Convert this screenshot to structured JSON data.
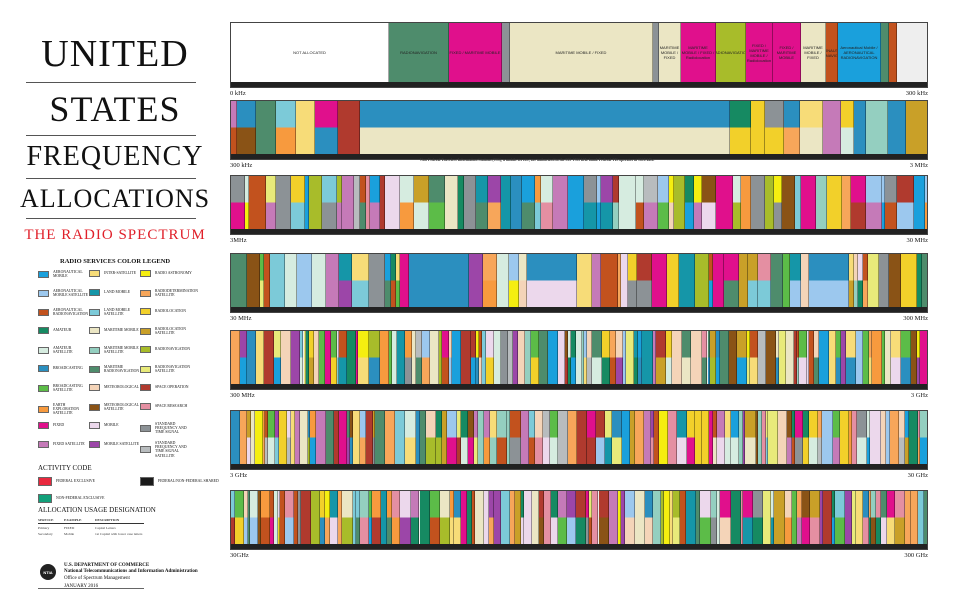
{
  "title": {
    "line1": "UNITED",
    "line2": "STATES",
    "line3": "FREQUENCY",
    "line4": "ALLOCATIONS",
    "subtitle": "THE RADIO SPECTRUM"
  },
  "legend": {
    "title": "RADIO SERVICES COLOR LEGEND",
    "items": [
      {
        "label": "AERONAUTICAL MOBILE",
        "color": "#1aa0dc"
      },
      {
        "label": "INTER-SATELLITE",
        "color": "#f7dc78"
      },
      {
        "label": "RADIO ASTRONOMY",
        "color": "#f5ee10"
      },
      {
        "label": "AERONAUTICAL MOBILE SATELLITE",
        "color": "#9cc8ee"
      },
      {
        "label": "LAND MOBILE",
        "color": "#1596a8"
      },
      {
        "label": "RADIODETERMINATION SATELLITE",
        "color": "#f7a65a"
      },
      {
        "label": "AERONAUTICAL RADIONAVIGATION",
        "color": "#c2521e"
      },
      {
        "label": "LAND MOBILE SATELLITE",
        "color": "#7ccad8"
      },
      {
        "label": "RADIOLOCATION",
        "color": "#f2d02a"
      },
      {
        "label": "AMATEUR",
        "color": "#168a62"
      },
      {
        "label": "MARITIME MOBILE",
        "color": "#ebe6c4"
      },
      {
        "label": "RADIOLOCATION SATELLITE",
        "color": "#c9a028"
      },
      {
        "label": "AMATEUR SATELLITE",
        "color": "#d6ece0"
      },
      {
        "label": "MARITIME MOBILE SATELLITE",
        "color": "#94cfc0"
      },
      {
        "label": "RADIONAVIGATION",
        "color": "#a8bc2a"
      },
      {
        "label": "BROADCASTING",
        "color": "#2b8fbf"
      },
      {
        "label": "MARITIME RADIONAVIGATION",
        "color": "#4e8c6c"
      },
      {
        "label": "RADIONAVIGATION SATELLITE",
        "color": "#e8ea7a"
      },
      {
        "label": "BROADCASTING SATELLITE",
        "color": "#5cbc48"
      },
      {
        "label": "METEOROLOGICAL",
        "color": "#f4d4b8"
      },
      {
        "label": "SPACE OPERATION",
        "color": "#b03a2e"
      },
      {
        "label": "EARTH EXPLORATION SATELLITE",
        "color": "#f79a3e"
      },
      {
        "label": "METEOROLOGICAL SATELLITE",
        "color": "#8a5316"
      },
      {
        "label": "SPACE RESEARCH",
        "color": "#e48fa2"
      },
      {
        "label": "FIXED",
        "color": "#e0108c"
      },
      {
        "label": "MOBILE",
        "color": "#ecd8ec"
      },
      {
        "label": "STANDARD FREQUENCY AND TIME SIGNAL",
        "color": "#8c9296"
      },
      {
        "label": "FIXED SATELLITE",
        "color": "#c57ab8"
      },
      {
        "label": "MOBILE SATELLITE",
        "color": "#9c46a8"
      },
      {
        "label": "STANDARD FREQUENCY AND TIME SIGNAL SATELLITE",
        "color": "#b8bcbe"
      }
    ]
  },
  "activity": {
    "title": "ACTIVITY CODE",
    "items": [
      {
        "label": "FEDERAL EXCLUSIVE",
        "color": "#e8283e"
      },
      {
        "label": "FEDERAL/NON-FEDERAL SHARED",
        "color": "#1a1a1a"
      },
      {
        "label": "NON-FEDERAL EXCLUSIVE",
        "color": "#12a07a"
      }
    ]
  },
  "usage": {
    "title": "ALLOCATION USAGE DESIGNATION",
    "headers": [
      "SERVICE",
      "EXAMPLE",
      "DESCRIPTION"
    ],
    "rows": [
      [
        "Primary",
        "FIXED",
        "Capital Letters"
      ],
      [
        "Secondary",
        "Mobile",
        "1st Capital with lower case letters"
      ]
    ]
  },
  "footer": {
    "dept": "U.S. DEPARTMENT OF COMMERCE",
    "agency": "National Telecommunications and Information Administration",
    "office": "Office of Spectrum Management",
    "date": "JANUARY 2016",
    "logo": "NTIA"
  },
  "bands": [
    {
      "start": "0 kHz",
      "end": "300 kHz"
    },
    {
      "start": "300 kHz",
      "end": "3 MHz"
    },
    {
      "start": "3MHz",
      "end": "30 MHz"
    },
    {
      "start": "30 MHz",
      "end": "300 MHz"
    },
    {
      "start": "300 MHz",
      "end": "3 GHz"
    },
    {
      "start": "3 GHz",
      "end": "30 GHz"
    },
    {
      "start": "30GHz",
      "end": "300 GHz"
    }
  ],
  "top_band": [
    {
      "label": "NOT ALLOCATED",
      "color": "#ffffff"
    },
    {
      "label": "RADIONAVIGATION",
      "color": "#4e8c6c"
    },
    {
      "label": "FIXED / MARITIME MOBILE",
      "color": "#e0108c"
    },
    {
      "label": "",
      "color": "#8c9296"
    },
    {
      "label": "MARITIME MOBILE / FIXED",
      "color": "#ebe6c4"
    },
    {
      "label": "",
      "color": "#8c9296"
    },
    {
      "label": "MARITIME MOBILE / FIXED",
      "color": "#ebe6c4"
    },
    {
      "label": "MARITIME MOBILE / FIXED / Radiolocation",
      "color": "#e0108c"
    },
    {
      "label": "RADIONAVIGATION",
      "color": "#a8bc2a"
    },
    {
      "label": "FIXED / MARITIME MOBILE / Radiolocation",
      "color": "#e0108c"
    },
    {
      "label": "FIXED / MARITIME MOBILE",
      "color": "#e0108c"
    },
    {
      "label": "MARITIME MOBILE / FIXED",
      "color": "#ebe6c4"
    },
    {
      "label": "AERONAUTICAL RADIONAVIGATION",
      "color": "#c2521e"
    },
    {
      "label": "Aeronautical Mobile / AERONAUTICAL RADIONAVIGATION",
      "color": "#1aa0dc"
    },
    {
      "label": "",
      "color": "#4e8c6c"
    },
    {
      "label": "",
      "color": "#c2521e"
    }
  ],
  "note": "Non-Federal Travelers Information Stations (TIS), a mobile service, are authorized in the 535-1705 kHz band. Federal TIS operates at 1610 kHz."
}
